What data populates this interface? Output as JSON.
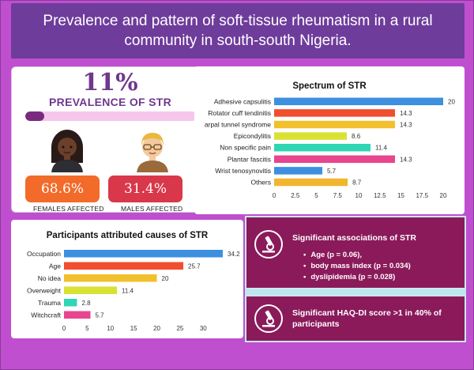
{
  "header": {
    "title": "Prevalence and pattern of soft-tissue rheumatism in a rural community in south-south Nigeria."
  },
  "prevalence": {
    "percent_text": "11%",
    "label": "PREVALENCE OF STR",
    "progress": 0.11,
    "colors": {
      "track": "#f6c6ec",
      "fill": "#7a2a7e"
    },
    "females": {
      "value": "68.6%",
      "caption": "FEMALES AFFECTED",
      "color": "#f26b2a",
      "icon": "female-avatar-icon"
    },
    "males": {
      "value": "31.4%",
      "caption": "MALES AFFECTED",
      "color": "#d9374a",
      "icon": "male-avatar-icon"
    }
  },
  "chart_data": [
    {
      "type": "bar",
      "orientation": "horizontal",
      "title": "Spectrum of STR",
      "categories": [
        "Adhesive capsulitis",
        "Rotator cuff tendinitis",
        "arpal tunnel syndrome",
        "Epicondylitis",
        "Non specific pain",
        "Plantar fascitis",
        "Wrist tenosynovitis",
        "Others"
      ],
      "values": [
        20,
        14.3,
        14.3,
        8.6,
        11.4,
        14.3,
        5.7,
        8.7
      ],
      "value_labels": [
        "20",
        "14.3",
        "14.3",
        "8.6",
        "11.4",
        "14.3",
        "5.7",
        "8.7"
      ],
      "colors": [
        "#3d8fe0",
        "#f04e2f",
        "#f2c02c",
        "#d9e233",
        "#2fd6b3",
        "#e8458f",
        "#3d8fe0",
        "#f2b52c"
      ],
      "xlim": [
        0,
        20
      ],
      "xticks": [
        "0",
        "2.5",
        "5",
        "7.5",
        "10",
        "12.5",
        "15",
        "17.5",
        "20"
      ],
      "xtick_values": [
        0,
        2.5,
        5,
        7.5,
        10,
        12.5,
        15,
        17.5,
        20
      ],
      "grid": false,
      "legend": "none"
    },
    {
      "type": "bar",
      "orientation": "horizontal",
      "title": "Participants attributed causes of STR",
      "categories": [
        "Occupation",
        "Age",
        "No idea",
        "Overweight",
        "Trauma",
        "Witchcraft"
      ],
      "values": [
        34.2,
        25.7,
        20,
        11.4,
        2.8,
        5.7
      ],
      "value_labels": [
        "34.2",
        "25.7",
        "20",
        "11.4",
        "2.8",
        "5.7"
      ],
      "colors": [
        "#3d8fe0",
        "#f04e2f",
        "#f2c02c",
        "#d9e233",
        "#2fd6b3",
        "#e8458f"
      ],
      "xlim": [
        0,
        34.2
      ],
      "xticks": [
        "0",
        "5",
        "10",
        "15",
        "20",
        "25",
        "30"
      ],
      "xtick_values": [
        0,
        5,
        10,
        15,
        20,
        25,
        30
      ],
      "grid": false,
      "legend": "none"
    }
  ],
  "associations": {
    "title": "Significant associations of STR",
    "items": [
      "Age (p = 0.06),",
      "body mass index (p = 0.034)",
      "dyslipidemia (p = 0.028)"
    ],
    "icon": "microscope-icon",
    "color": "#8b1a5b"
  },
  "haq": {
    "text": "Significant  HAQ-DI score >1 in 40% of participants",
    "icon": "microscope-icon"
  }
}
